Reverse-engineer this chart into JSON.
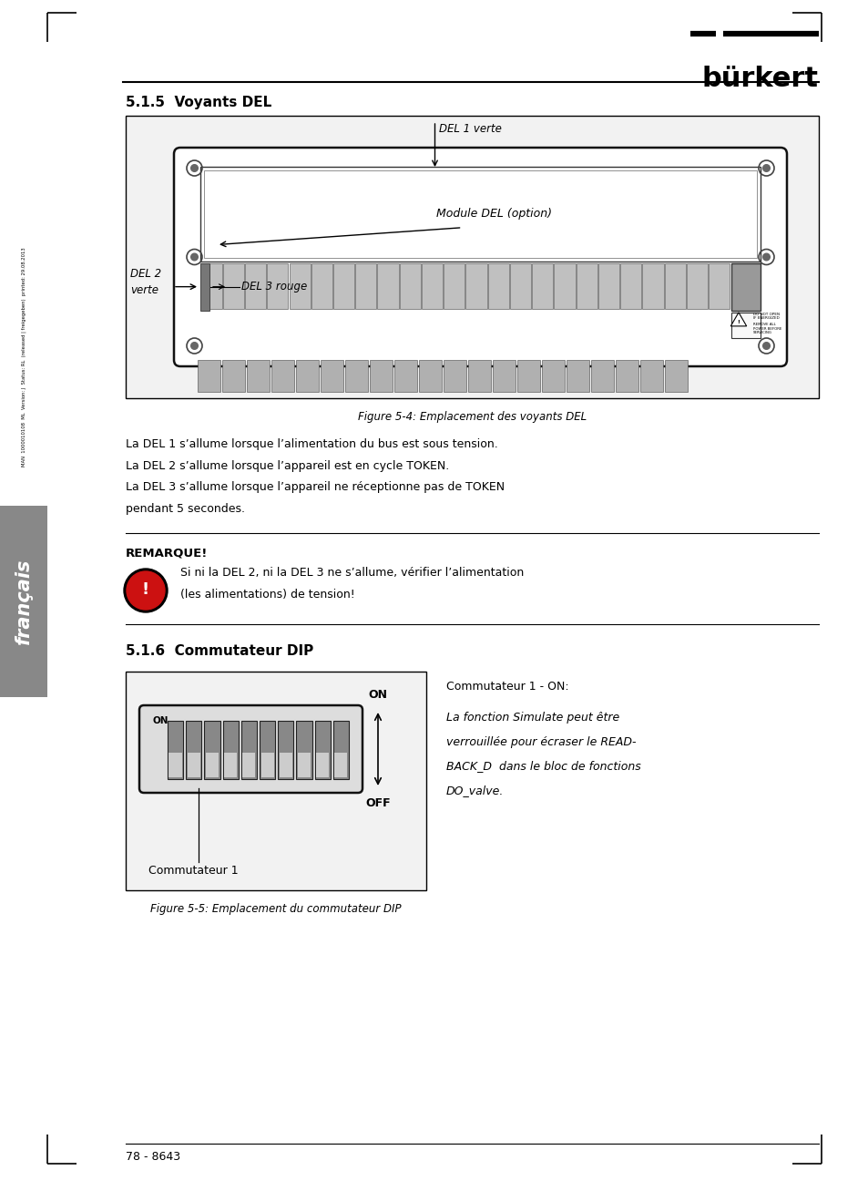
{
  "bg_color": "#ffffff",
  "page_width": 9.54,
  "page_height": 13.07,
  "burkert_logo": "bürkert",
  "section_title_1": "5.1.5  Voyants DEL",
  "figure1_caption": "Figure 5-4: Emplacement des voyants DEL",
  "label_del1": "DEL 1 verte",
  "label_del2_line1": "DEL 2",
  "label_del2_line2": "verte",
  "label_del3": "DEL 3 rouge",
  "label_module": "Module DEL (option)",
  "body_text_1": "La DEL 1 s’allume lorsque l’alimentation du bus est sous tension.",
  "body_text_2": "La DEL 2 s’allume lorsque l’appareil est en cycle TOKEN.",
  "body_text_3": "La DEL 3 s’allume lorsque l’appareil ne réceptionne pas de TOKEN",
  "body_text_4": "pendant 5 secondes.",
  "remarque_title": "REMARQUE!",
  "remarque_text_1": "Si ni la DEL 2, ni la DEL 3 ne s’allume, vérifier l’alimentation",
  "remarque_text_2": "(les alimentations) de tension!",
  "section_title_2": "5.1.6  Commutateur DIP",
  "figure2_caption": "Figure 5-5: Emplacement du commutateur DIP",
  "dip_label_on": "ON",
  "dip_label_off": "OFF",
  "dip_label_comm": "Commutateur 1",
  "dip_desc_line1": "Commutateur 1 - ON:",
  "dip_desc_line2": "La fonction Simulate peut être",
  "dip_desc_line3": "verrouillée pour écraser le READ-",
  "dip_desc_line4": "BACK_D  dans le bloc de fonctions",
  "dip_desc_line5": "DO_valve.",
  "sidebar_text": "français",
  "sidebar_small_1": "MAN  1000010108  ML  Version: J  Status: RL  (released | freigegeben)  printed: 29.08.2013",
  "footer_text": "78 - 8643",
  "sidebar_bg": "#888888"
}
